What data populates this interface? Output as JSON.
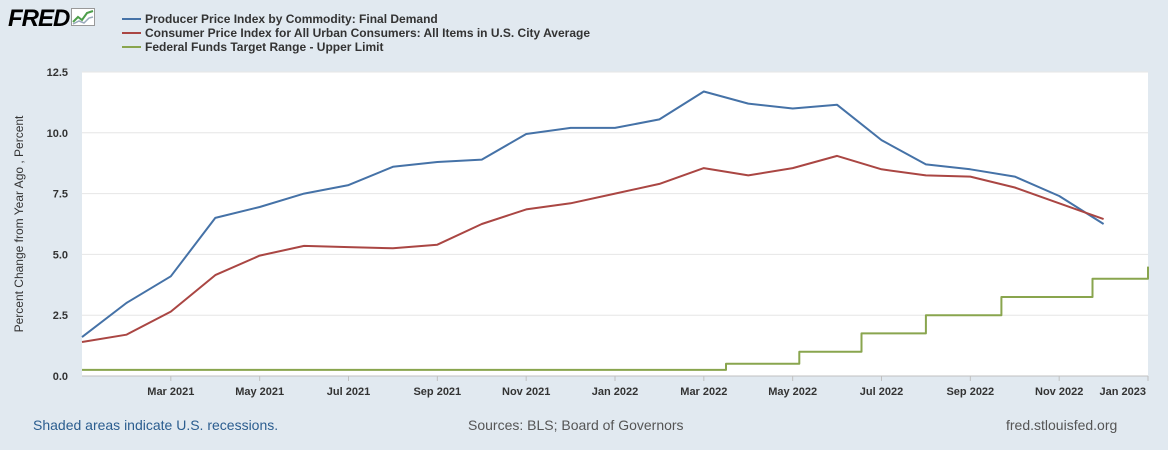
{
  "logo": {
    "text": "FRED",
    "icon": "fred-chart-icon"
  },
  "footer": {
    "recession_note": "Shaded areas indicate U.S. recessions.",
    "sources": "Sources: BLS; Board of Governors",
    "site": "fred.stlouisfed.org"
  },
  "chart_data": {
    "type": "line",
    "ylabel": "Percent Change from Year Ago , Percent",
    "ylim": [
      0,
      12.5
    ],
    "yticks": [
      "0.0",
      "2.5",
      "5.0",
      "7.5",
      "10.0",
      "12.5"
    ],
    "ytick_values": [
      0,
      2.5,
      5,
      7.5,
      10,
      12.5
    ],
    "x_start": "2021-01",
    "x_end": "2023-01",
    "xtick_labels": [
      "Mar 2021",
      "May 2021",
      "Jul 2021",
      "Sep 2021",
      "Nov 2021",
      "Jan 2022",
      "Mar 2022",
      "May 2022",
      "Jul 2022",
      "Sep 2022",
      "Nov 2022",
      "Jan 2023"
    ],
    "xtick_months": [
      2,
      4,
      6,
      8,
      10,
      12,
      14,
      16,
      18,
      20,
      22,
      24
    ],
    "legend_position": "top-left",
    "grid": true,
    "series": [
      {
        "name": "Producer Price Index by Commodity: Final Demand",
        "color": "#4572a7",
        "step": false,
        "x_months": [
          0,
          1,
          2,
          3,
          4,
          5,
          6,
          7,
          8,
          9,
          10,
          11,
          12,
          13,
          14,
          15,
          16,
          17,
          18,
          19,
          20,
          21,
          22,
          23
        ],
        "values": [
          1.6,
          3.0,
          4.1,
          6.5,
          6.95,
          7.5,
          7.85,
          8.6,
          8.8,
          8.9,
          9.95,
          10.2,
          10.2,
          10.55,
          11.7,
          11.2,
          11.0,
          11.15,
          9.7,
          8.7,
          8.5,
          8.2,
          7.4,
          6.25
        ]
      },
      {
        "name": "Consumer Price Index for All Urban Consumers: All Items in U.S. City Average",
        "color": "#aa4643",
        "step": false,
        "x_months": [
          0,
          1,
          2,
          3,
          4,
          5,
          6,
          7,
          8,
          9,
          10,
          11,
          12,
          13,
          14,
          15,
          16,
          17,
          18,
          19,
          20,
          21,
          22,
          23
        ],
        "values": [
          1.4,
          1.7,
          2.65,
          4.15,
          4.95,
          5.35,
          5.3,
          5.25,
          5.4,
          6.25,
          6.85,
          7.1,
          7.5,
          7.9,
          8.55,
          8.25,
          8.55,
          9.05,
          8.5,
          8.25,
          8.2,
          7.75,
          7.1,
          6.45
        ]
      },
      {
        "name": "Federal Funds Target Range - Upper Limit",
        "color": "#89a54e",
        "step": true,
        "x_months": [
          0,
          14.5,
          16.15,
          17.55,
          19.0,
          20.7,
          22.75,
          24.0
        ],
        "values": [
          0.25,
          0.5,
          1.0,
          1.75,
          2.5,
          3.25,
          4.0,
          4.5
        ]
      }
    ]
  }
}
